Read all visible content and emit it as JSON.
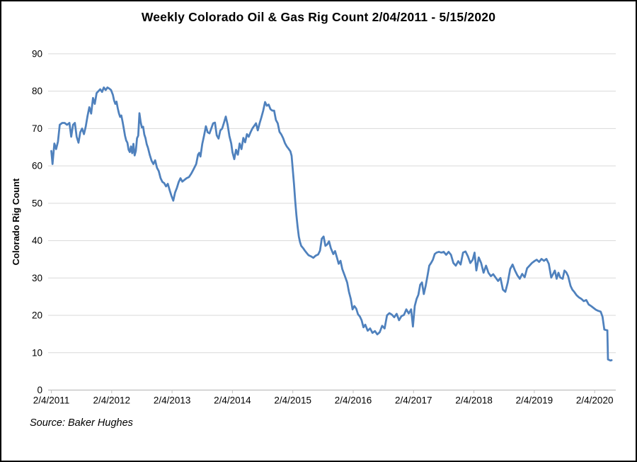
{
  "figure": {
    "title": "Weekly Colorado Oil & Gas Rig Count 2/04/2011 - 5/15/2020",
    "source": "Source: Baker Hughes"
  },
  "chart_data": {
    "type": "line",
    "title": "Weekly Colorado Oil & Gas Rig Count 2/04/2011 - 5/15/2020",
    "xlabel": "",
    "ylabel": "Colorado Rig Count",
    "ylim": [
      0,
      90
    ],
    "y_ticks": [
      0,
      10,
      20,
      30,
      40,
      50,
      60,
      70,
      80,
      90
    ],
    "x_tick_labels": [
      "2/4/2011",
      "2/4/2012",
      "2/4/2013",
      "2/4/2014",
      "2/4/2015",
      "2/4/2016",
      "2/4/2017",
      "2/4/2018",
      "2/4/2019",
      "2/4/2020"
    ],
    "x_unit": "years after 2/4/2011",
    "grid": "horizontal",
    "legend": "none",
    "line_color": "#4F81BD",
    "grid_color": "#d9d9d9",
    "axis_color": "#bfbfbf",
    "series": [
      {
        "name": "Colorado Rig Count",
        "points": [
          [
            0.0,
            64
          ],
          [
            0.02,
            60.5
          ],
          [
            0.05,
            66
          ],
          [
            0.08,
            64.5
          ],
          [
            0.11,
            66.5
          ],
          [
            0.14,
            71
          ],
          [
            0.18,
            71.5
          ],
          [
            0.22,
            71.5
          ],
          [
            0.26,
            71
          ],
          [
            0.3,
            71.5
          ],
          [
            0.33,
            67.8
          ],
          [
            0.36,
            71
          ],
          [
            0.39,
            71.5
          ],
          [
            0.42,
            67.8
          ],
          [
            0.45,
            66.2
          ],
          [
            0.48,
            69
          ],
          [
            0.51,
            70
          ],
          [
            0.54,
            68.5
          ],
          [
            0.57,
            70.5
          ],
          [
            0.6,
            73.4
          ],
          [
            0.63,
            75.7
          ],
          [
            0.66,
            74
          ],
          [
            0.69,
            78.2
          ],
          [
            0.72,
            76.6
          ],
          [
            0.75,
            79.5
          ],
          [
            0.78,
            80
          ],
          [
            0.81,
            80.5
          ],
          [
            0.84,
            79.8
          ],
          [
            0.87,
            81
          ],
          [
            0.9,
            80.3
          ],
          [
            0.93,
            81
          ],
          [
            0.96,
            80.7
          ],
          [
            0.99,
            80.3
          ],
          [
            1.02,
            79
          ],
          [
            1.04,
            77.5
          ],
          [
            1.06,
            76.6
          ],
          [
            1.08,
            77.2
          ],
          [
            1.1,
            75.5
          ],
          [
            1.12,
            74.1
          ],
          [
            1.14,
            73.1
          ],
          [
            1.16,
            73.5
          ],
          [
            1.18,
            71.8
          ],
          [
            1.2,
            70
          ],
          [
            1.22,
            68.1
          ],
          [
            1.24,
            66.8
          ],
          [
            1.26,
            66.2
          ],
          [
            1.28,
            64.3
          ],
          [
            1.3,
            63.7
          ],
          [
            1.32,
            65.2
          ],
          [
            1.34,
            63.4
          ],
          [
            1.36,
            65.9
          ],
          [
            1.38,
            62.8
          ],
          [
            1.4,
            64
          ],
          [
            1.42,
            67.4
          ],
          [
            1.44,
            68.1
          ],
          [
            1.46,
            74.1
          ],
          [
            1.48,
            71.8
          ],
          [
            1.5,
            70.3
          ],
          [
            1.52,
            70.5
          ],
          [
            1.54,
            68.4
          ],
          [
            1.56,
            67.4
          ],
          [
            1.58,
            65.8
          ],
          [
            1.6,
            64.9
          ],
          [
            1.63,
            63
          ],
          [
            1.66,
            61.4
          ],
          [
            1.69,
            60.5
          ],
          [
            1.72,
            61.5
          ],
          [
            1.75,
            59.5
          ],
          [
            1.78,
            58.6
          ],
          [
            1.81,
            56.7
          ],
          [
            1.84,
            55.7
          ],
          [
            1.87,
            55.4
          ],
          [
            1.9,
            54.5
          ],
          [
            1.93,
            55.2
          ],
          [
            1.96,
            53.5
          ],
          [
            1.99,
            52
          ],
          [
            2.02,
            50.7
          ],
          [
            2.05,
            52.9
          ],
          [
            2.08,
            54.1
          ],
          [
            2.11,
            55.7
          ],
          [
            2.14,
            56.7
          ],
          [
            2.17,
            55.8
          ],
          [
            2.2,
            56.2
          ],
          [
            2.24,
            56.7
          ],
          [
            2.28,
            57
          ],
          [
            2.32,
            58
          ],
          [
            2.36,
            59.2
          ],
          [
            2.4,
            60.5
          ],
          [
            2.43,
            63
          ],
          [
            2.45,
            63.5
          ],
          [
            2.47,
            62.5
          ],
          [
            2.5,
            65.9
          ],
          [
            2.53,
            68.1
          ],
          [
            2.56,
            70.6
          ],
          [
            2.59,
            69
          ],
          [
            2.62,
            68.7
          ],
          [
            2.65,
            70
          ],
          [
            2.68,
            71.4
          ],
          [
            2.71,
            71.6
          ],
          [
            2.74,
            68.2
          ],
          [
            2.77,
            67.3
          ],
          [
            2.8,
            69.5
          ],
          [
            2.83,
            70
          ],
          [
            2.86,
            71.6
          ],
          [
            2.89,
            73.2
          ],
          [
            2.92,
            71
          ],
          [
            2.95,
            68
          ],
          [
            2.98,
            66
          ],
          [
            3.0,
            63.7
          ],
          [
            3.03,
            61.8
          ],
          [
            3.06,
            64.3
          ],
          [
            3.09,
            63
          ],
          [
            3.12,
            66
          ],
          [
            3.15,
            64.5
          ],
          [
            3.18,
            67.5
          ],
          [
            3.21,
            66.3
          ],
          [
            3.24,
            68.5
          ],
          [
            3.27,
            67.8
          ],
          [
            3.3,
            69
          ],
          [
            3.33,
            70
          ],
          [
            3.36,
            70.7
          ],
          [
            3.39,
            71.4
          ],
          [
            3.42,
            69.5
          ],
          [
            3.45,
            71.4
          ],
          [
            3.48,
            73
          ],
          [
            3.51,
            74.8
          ],
          [
            3.54,
            77.1
          ],
          [
            3.57,
            76.1
          ],
          [
            3.6,
            76.4
          ],
          [
            3.63,
            75.2
          ],
          [
            3.66,
            74.8
          ],
          [
            3.69,
            74.8
          ],
          [
            3.72,
            72.3
          ],
          [
            3.75,
            71.4
          ],
          [
            3.78,
            69.1
          ],
          [
            3.81,
            68.4
          ],
          [
            3.84,
            67.4
          ],
          [
            3.87,
            66.1
          ],
          [
            3.9,
            65.2
          ],
          [
            3.93,
            64.6
          ],
          [
            3.96,
            63.9
          ],
          [
            3.98,
            62.7
          ],
          [
            4.0,
            58.9
          ],
          [
            4.02,
            55.1
          ],
          [
            4.04,
            50.6
          ],
          [
            4.06,
            46.8
          ],
          [
            4.08,
            43.7
          ],
          [
            4.1,
            41.1
          ],
          [
            4.12,
            39.6
          ],
          [
            4.14,
            38.6
          ],
          [
            4.17,
            38
          ],
          [
            4.2,
            37.3
          ],
          [
            4.23,
            36.7
          ],
          [
            4.26,
            36.1
          ],
          [
            4.3,
            35.8
          ],
          [
            4.34,
            35.4
          ],
          [
            4.38,
            36
          ],
          [
            4.42,
            36.3
          ],
          [
            4.45,
            37.3
          ],
          [
            4.48,
            40.5
          ],
          [
            4.51,
            41.1
          ],
          [
            4.54,
            38.6
          ],
          [
            4.57,
            39
          ],
          [
            4.6,
            39.8
          ],
          [
            4.63,
            38
          ],
          [
            4.67,
            36.4
          ],
          [
            4.7,
            37.2
          ],
          [
            4.73,
            35.5
          ],
          [
            4.76,
            33.8
          ],
          [
            4.79,
            34.6
          ],
          [
            4.82,
            32.4
          ],
          [
            4.86,
            30.6
          ],
          [
            4.9,
            28.8
          ],
          [
            4.93,
            26.3
          ],
          [
            4.96,
            24.4
          ],
          [
            4.99,
            21.6
          ],
          [
            5.02,
            22.5
          ],
          [
            5.05,
            21.8
          ],
          [
            5.08,
            20.3
          ],
          [
            5.11,
            19.7
          ],
          [
            5.14,
            18.7
          ],
          [
            5.17,
            16.8
          ],
          [
            5.2,
            17.5
          ],
          [
            5.24,
            15.9
          ],
          [
            5.28,
            16.5
          ],
          [
            5.32,
            15.3
          ],
          [
            5.36,
            15.8
          ],
          [
            5.4,
            14.9
          ],
          [
            5.44,
            15.5
          ],
          [
            5.48,
            17.2
          ],
          [
            5.52,
            16.5
          ],
          [
            5.56,
            20
          ],
          [
            5.6,
            20.6
          ],
          [
            5.64,
            20.2
          ],
          [
            5.68,
            19.5
          ],
          [
            5.72,
            20.4
          ],
          [
            5.76,
            18.7
          ],
          [
            5.8,
            19.8
          ],
          [
            5.84,
            20.1
          ],
          [
            5.88,
            21.6
          ],
          [
            5.92,
            20.5
          ],
          [
            5.96,
            21.6
          ],
          [
            5.99,
            17
          ],
          [
            6.02,
            22.5
          ],
          [
            6.05,
            24.4
          ],
          [
            6.08,
            25.5
          ],
          [
            6.11,
            28.2
          ],
          [
            6.14,
            28.8
          ],
          [
            6.17,
            25.7
          ],
          [
            6.2,
            27.9
          ],
          [
            6.23,
            30.5
          ],
          [
            6.26,
            33.3
          ],
          [
            6.29,
            34
          ],
          [
            6.32,
            34.9
          ],
          [
            6.35,
            36.4
          ],
          [
            6.38,
            36.8
          ],
          [
            6.42,
            37
          ],
          [
            6.46,
            36.8
          ],
          [
            6.5,
            37
          ],
          [
            6.54,
            36.2
          ],
          [
            6.58,
            37
          ],
          [
            6.62,
            36.2
          ],
          [
            6.66,
            34
          ],
          [
            6.7,
            33.3
          ],
          [
            6.74,
            34.5
          ],
          [
            6.78,
            33.6
          ],
          [
            6.82,
            36.8
          ],
          [
            6.86,
            37.1
          ],
          [
            6.9,
            35.8
          ],
          [
            6.94,
            34
          ],
          [
            6.98,
            34.9
          ],
          [
            7.01,
            36.8
          ],
          [
            7.04,
            32
          ],
          [
            7.08,
            35.5
          ],
          [
            7.12,
            34
          ],
          [
            7.16,
            31.4
          ],
          [
            7.2,
            33.3
          ],
          [
            7.24,
            31.4
          ],
          [
            7.28,
            30.5
          ],
          [
            7.32,
            31
          ],
          [
            7.36,
            30.1
          ],
          [
            7.4,
            29.2
          ],
          [
            7.44,
            30
          ],
          [
            7.48,
            26.9
          ],
          [
            7.52,
            26.3
          ],
          [
            7.56,
            28.8
          ],
          [
            7.6,
            32.4
          ],
          [
            7.64,
            33.6
          ],
          [
            7.68,
            32
          ],
          [
            7.72,
            30.7
          ],
          [
            7.76,
            29.8
          ],
          [
            7.8,
            31.1
          ],
          [
            7.84,
            30.2
          ],
          [
            7.88,
            32.6
          ],
          [
            7.92,
            33.3
          ],
          [
            7.96,
            34
          ],
          [
            8.0,
            34.5
          ],
          [
            8.04,
            34.9
          ],
          [
            8.08,
            34.3
          ],
          [
            8.12,
            35.1
          ],
          [
            8.16,
            34.6
          ],
          [
            8.2,
            35.1
          ],
          [
            8.24,
            33.8
          ],
          [
            8.28,
            30.1
          ],
          [
            8.31,
            31
          ],
          [
            8.34,
            32
          ],
          [
            8.37,
            29.8
          ],
          [
            8.4,
            31.4
          ],
          [
            8.43,
            30.1
          ],
          [
            8.47,
            29.8
          ],
          [
            8.5,
            32
          ],
          [
            8.53,
            31.5
          ],
          [
            8.56,
            30.5
          ],
          [
            8.6,
            27.9
          ],
          [
            8.63,
            26.9
          ],
          [
            8.66,
            26.3
          ],
          [
            8.7,
            25.4
          ],
          [
            8.74,
            24.8
          ],
          [
            8.78,
            24.4
          ],
          [
            8.82,
            23.8
          ],
          [
            8.86,
            24.1
          ],
          [
            8.9,
            22.9
          ],
          [
            8.94,
            22.5
          ],
          [
            8.98,
            22
          ],
          [
            9.02,
            21.5
          ],
          [
            9.06,
            21.2
          ],
          [
            9.1,
            21
          ],
          [
            9.13,
            19.6
          ],
          [
            9.16,
            16.2
          ],
          [
            9.2,
            16
          ],
          [
            9.21,
            16
          ],
          [
            9.22,
            8.2
          ],
          [
            9.26,
            7.9
          ],
          [
            9.28,
            8
          ]
        ]
      }
    ]
  }
}
